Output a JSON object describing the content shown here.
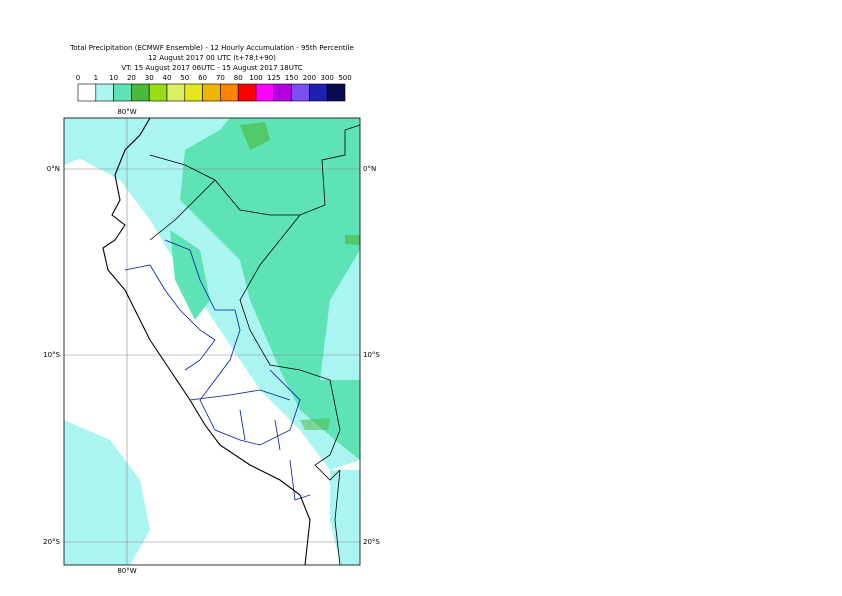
{
  "header": {
    "title": "Total Precipitation (ECMWF Ensemble) - 12 Hourly Accumulation - 95th Percentile",
    "base": "12 August 2017 00 UTC (t+78,t+90)",
    "valid": "VT: 15 August 2017 06UTC - 15 August 2017 18UTC"
  },
  "legend": {
    "labels": [
      0,
      1,
      10,
      20,
      30,
      40,
      50,
      60,
      70,
      80,
      100,
      125,
      150,
      200,
      300,
      500
    ],
    "colors": [
      "#ffffff",
      "#aaf5f0",
      "#5de3b5",
      "#4cb83c",
      "#98dc14",
      "#dcf064",
      "#e6e61e",
      "#f0b400",
      "#ff8200",
      "#ff0000",
      "#ff00ff",
      "#b400dc",
      "#7850f0",
      "#2020b0",
      "#0a0a50"
    ]
  },
  "map": {
    "lon_labels": [
      "80°W",
      "80°W"
    ],
    "lat_labels": [
      "0°N",
      "10°S",
      "20°S",
      "0°N",
      "10°S",
      "20°S"
    ]
  }
}
